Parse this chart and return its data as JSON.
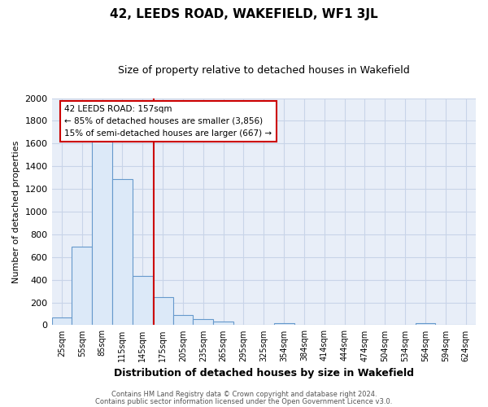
{
  "title": "42, LEEDS ROAD, WAKEFIELD, WF1 3JL",
  "subtitle": "Size of property relative to detached houses in Wakefield",
  "xlabel": "Distribution of detached houses by size in Wakefield",
  "ylabel": "Number of detached properties",
  "bar_labels": [
    "25sqm",
    "55sqm",
    "85sqm",
    "115sqm",
    "145sqm",
    "175sqm",
    "205sqm",
    "235sqm",
    "265sqm",
    "295sqm",
    "325sqm",
    "354sqm",
    "384sqm",
    "414sqm",
    "444sqm",
    "474sqm",
    "504sqm",
    "534sqm",
    "564sqm",
    "594sqm",
    "624sqm"
  ],
  "bar_values": [
    70,
    690,
    1640,
    1290,
    430,
    250,
    90,
    50,
    30,
    0,
    0,
    15,
    0,
    0,
    0,
    0,
    0,
    0,
    15,
    0,
    0
  ],
  "bar_color": "#dce9f8",
  "bar_edge_color": "#6699cc",
  "ylim": [
    0,
    2000
  ],
  "yticks": [
    0,
    200,
    400,
    600,
    800,
    1000,
    1200,
    1400,
    1600,
    1800,
    2000
  ],
  "property_line_x": 4.57,
  "annotation_title": "42 LEEDS ROAD: 157sqm",
  "annotation_line1": "← 85% of detached houses are smaller (3,856)",
  "annotation_line2": "15% of semi-detached houses are larger (667) →",
  "annotation_box_facecolor": "#ffffff",
  "annotation_border_color": "#cc0000",
  "vline_color": "#cc0000",
  "footer_line1": "Contains HM Land Registry data © Crown copyright and database right 2024.",
  "footer_line2": "Contains public sector information licensed under the Open Government Licence v3.0.",
  "bg_color": "#ffffff",
  "plot_bg_color": "#e8eef8",
  "grid_color": "#c8d4e8",
  "title_fontsize": 11,
  "subtitle_fontsize": 9
}
